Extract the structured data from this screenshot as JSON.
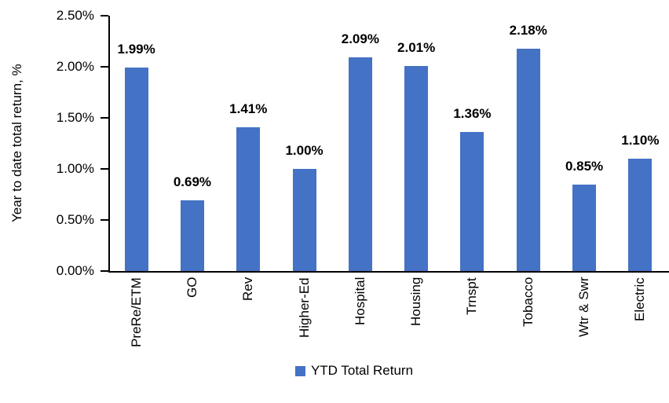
{
  "chart_data": {
    "type": "bar",
    "title": "",
    "categories": [
      "PreRe/ETM",
      "GO",
      "Rev",
      "Higher-Ed",
      "Hospital",
      "Housing",
      "Trnspt",
      "Tobacco",
      "Wtr & Swr",
      "Electric"
    ],
    "values": [
      1.99,
      0.69,
      1.41,
      1.0,
      2.09,
      2.01,
      1.36,
      2.18,
      0.85,
      1.1
    ],
    "value_labels": [
      "1.99%",
      "0.69%",
      "1.41%",
      "1.00%",
      "2.09%",
      "2.01%",
      "1.36%",
      "2.18%",
      "0.85%",
      "1.10%"
    ],
    "xlabel": "",
    "ylabel": "Year to date total return, %",
    "ylim": [
      0,
      2.5
    ],
    "yticks": [
      0,
      0.5,
      1.0,
      1.5,
      2.0,
      2.5
    ],
    "ytick_labels": [
      "0.00%",
      "0.50%",
      "1.00%",
      "1.50%",
      "2.00%",
      "2.50%"
    ],
    "grid": false,
    "legend_position": "bottom",
    "legend_entries": [
      "YTD Total Return"
    ],
    "bar_color": "#4472C4",
    "axis_color": "#000000",
    "text_color": "#000000",
    "background_color": "#FFFFFF"
  },
  "legend": {
    "label": "YTD Total Return",
    "swatch_color": "#4472C4"
  },
  "y_axis": {
    "title": "Year to date total return, %"
  }
}
